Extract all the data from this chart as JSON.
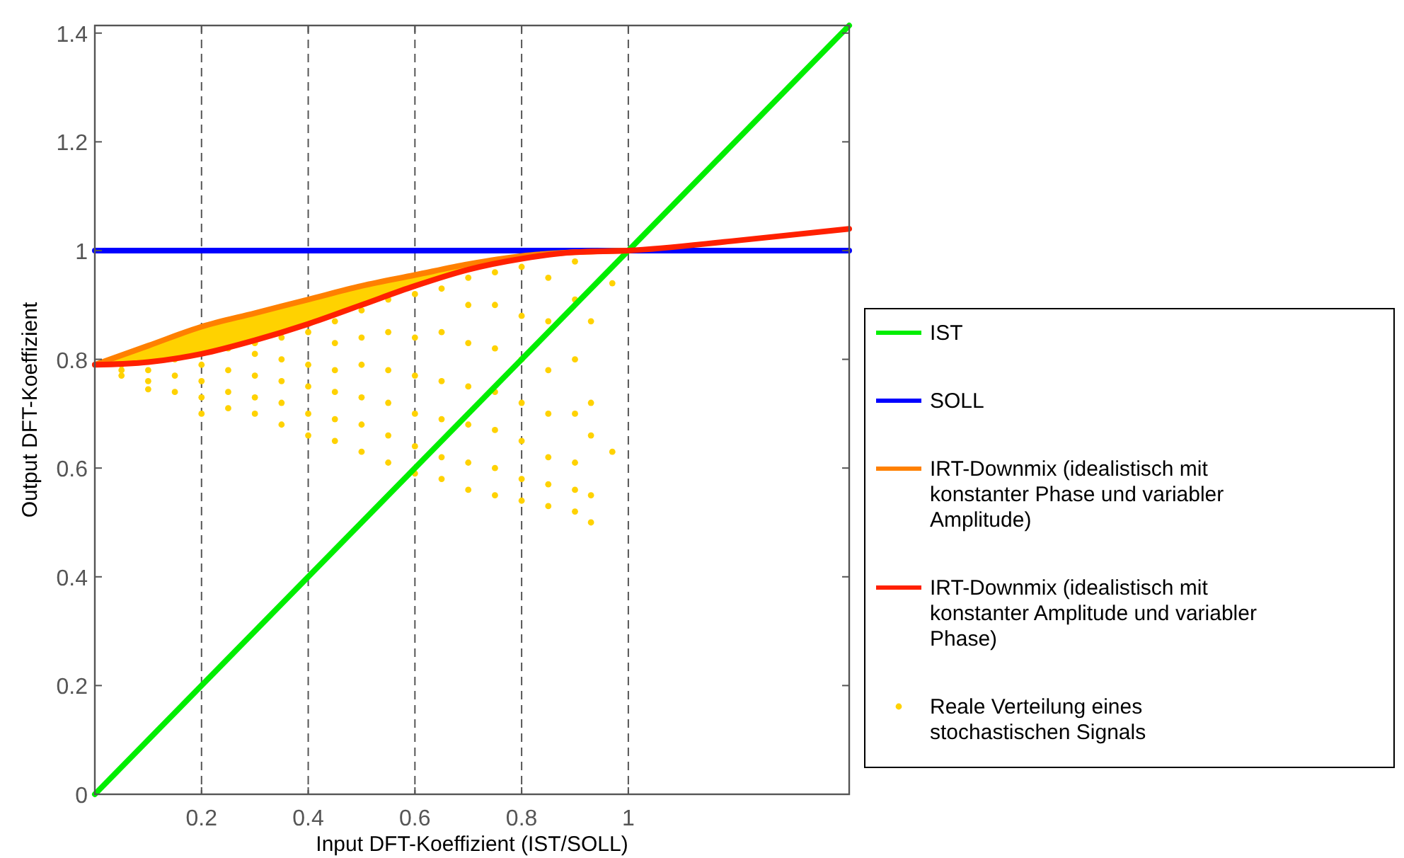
{
  "chart_data": {
    "type": "line",
    "xlabel": "Input DFT-Koeffizient (IST/SOLL)",
    "ylabel": "Output DFT-Koeffizient",
    "xlim": [
      0,
      1.414
    ],
    "ylim": [
      0,
      1.414
    ],
    "xticks": [
      0.2,
      0.4,
      0.6,
      0.8,
      1
    ],
    "yticks": [
      0,
      0.2,
      0.4,
      0.6,
      0.8,
      1,
      1.2,
      1.4
    ],
    "grid": "x",
    "legend": "right",
    "line_style": "solid",
    "series": [
      {
        "name": "IST",
        "color": "#00ee00",
        "x": [
          0,
          1.414
        ],
        "values": [
          0,
          1.414
        ]
      },
      {
        "name": "SOLL",
        "color": "#0000ff",
        "x": [
          0,
          1.414
        ],
        "values": [
          1,
          1
        ]
      },
      {
        "name": "IRT-Downmix (idealistisch mit konstanter Phase und variabler Amplitude)",
        "color": "#ff8000",
        "x": [
          0,
          0.1,
          0.2,
          0.3,
          0.4,
          0.5,
          0.6,
          0.7,
          0.8,
          0.9,
          1
        ],
        "values": [
          0.79,
          0.825,
          0.86,
          0.885,
          0.91,
          0.935,
          0.955,
          0.975,
          0.99,
          0.997,
          1
        ],
        "lower": [
          0.79,
          0.795,
          0.81,
          0.835,
          0.865,
          0.9,
          0.935,
          0.965,
          0.985,
          0.997,
          1
        ],
        "upper": [
          0.79,
          0.825,
          0.86,
          0.885,
          0.91,
          0.935,
          0.955,
          0.975,
          0.99,
          0.997,
          1
        ]
      },
      {
        "name": "IRT-Downmix (idealistisch mit konstanter Amplitude und variabler Phase)",
        "color": "#ff2000",
        "x": [
          0,
          0.1,
          0.2,
          0.3,
          0.4,
          0.5,
          0.6,
          0.7,
          0.8,
          0.9,
          1,
          1.2,
          1.414
        ],
        "values": [
          0.79,
          0.795,
          0.81,
          0.835,
          0.865,
          0.9,
          0.935,
          0.965,
          0.985,
          0.997,
          1,
          1.018,
          1.04
        ]
      },
      {
        "name": "Reale Verteilung eines stochastischen Signals",
        "type": "scatter",
        "marker": "circle",
        "color": "#ffd200",
        "x": [
          0.05,
          0.05,
          0.05,
          0.1,
          0.1,
          0.1,
          0.15,
          0.15,
          0.15,
          0.2,
          0.2,
          0.2,
          0.2,
          0.25,
          0.25,
          0.25,
          0.25,
          0.3,
          0.3,
          0.3,
          0.3,
          0.3,
          0.35,
          0.35,
          0.35,
          0.35,
          0.35,
          0.4,
          0.4,
          0.4,
          0.4,
          0.4,
          0.45,
          0.45,
          0.45,
          0.45,
          0.45,
          0.45,
          0.5,
          0.5,
          0.5,
          0.5,
          0.5,
          0.5,
          0.55,
          0.55,
          0.55,
          0.55,
          0.55,
          0.55,
          0.6,
          0.6,
          0.6,
          0.6,
          0.6,
          0.6,
          0.65,
          0.65,
          0.65,
          0.65,
          0.65,
          0.65,
          0.7,
          0.7,
          0.7,
          0.7,
          0.7,
          0.7,
          0.7,
          0.75,
          0.75,
          0.75,
          0.75,
          0.75,
          0.75,
          0.75,
          0.8,
          0.8,
          0.8,
          0.8,
          0.8,
          0.8,
          0.8,
          0.85,
          0.85,
          0.85,
          0.85,
          0.85,
          0.85,
          0.85,
          0.9,
          0.9,
          0.9,
          0.9,
          0.9,
          0.9,
          0.9,
          0.93,
          0.93,
          0.93,
          0.93,
          0.93,
          0.97,
          0.97
        ],
        "values": [
          0.77,
          0.78,
          0.79,
          0.76,
          0.78,
          0.745,
          0.74,
          0.77,
          0.8,
          0.73,
          0.76,
          0.79,
          0.7,
          0.71,
          0.74,
          0.78,
          0.82,
          0.7,
          0.73,
          0.77,
          0.81,
          0.83,
          0.68,
          0.72,
          0.76,
          0.8,
          0.84,
          0.66,
          0.7,
          0.75,
          0.79,
          0.85,
          0.65,
          0.69,
          0.74,
          0.78,
          0.83,
          0.87,
          0.63,
          0.68,
          0.73,
          0.79,
          0.84,
          0.89,
          0.61,
          0.66,
          0.72,
          0.78,
          0.85,
          0.91,
          0.59,
          0.64,
          0.7,
          0.77,
          0.84,
          0.92,
          0.58,
          0.62,
          0.69,
          0.76,
          0.85,
          0.93,
          0.56,
          0.61,
          0.68,
          0.75,
          0.83,
          0.9,
          0.95,
          0.55,
          0.6,
          0.67,
          0.74,
          0.82,
          0.9,
          0.96,
          0.54,
          0.58,
          0.65,
          0.72,
          0.8,
          0.88,
          0.97,
          0.53,
          0.57,
          0.62,
          0.7,
          0.78,
          0.87,
          0.95,
          0.52,
          0.56,
          0.61,
          0.7,
          0.8,
          0.91,
          0.98,
          0.5,
          0.55,
          0.66,
          0.72,
          0.87,
          0.63,
          0.94
        ]
      }
    ]
  }
}
